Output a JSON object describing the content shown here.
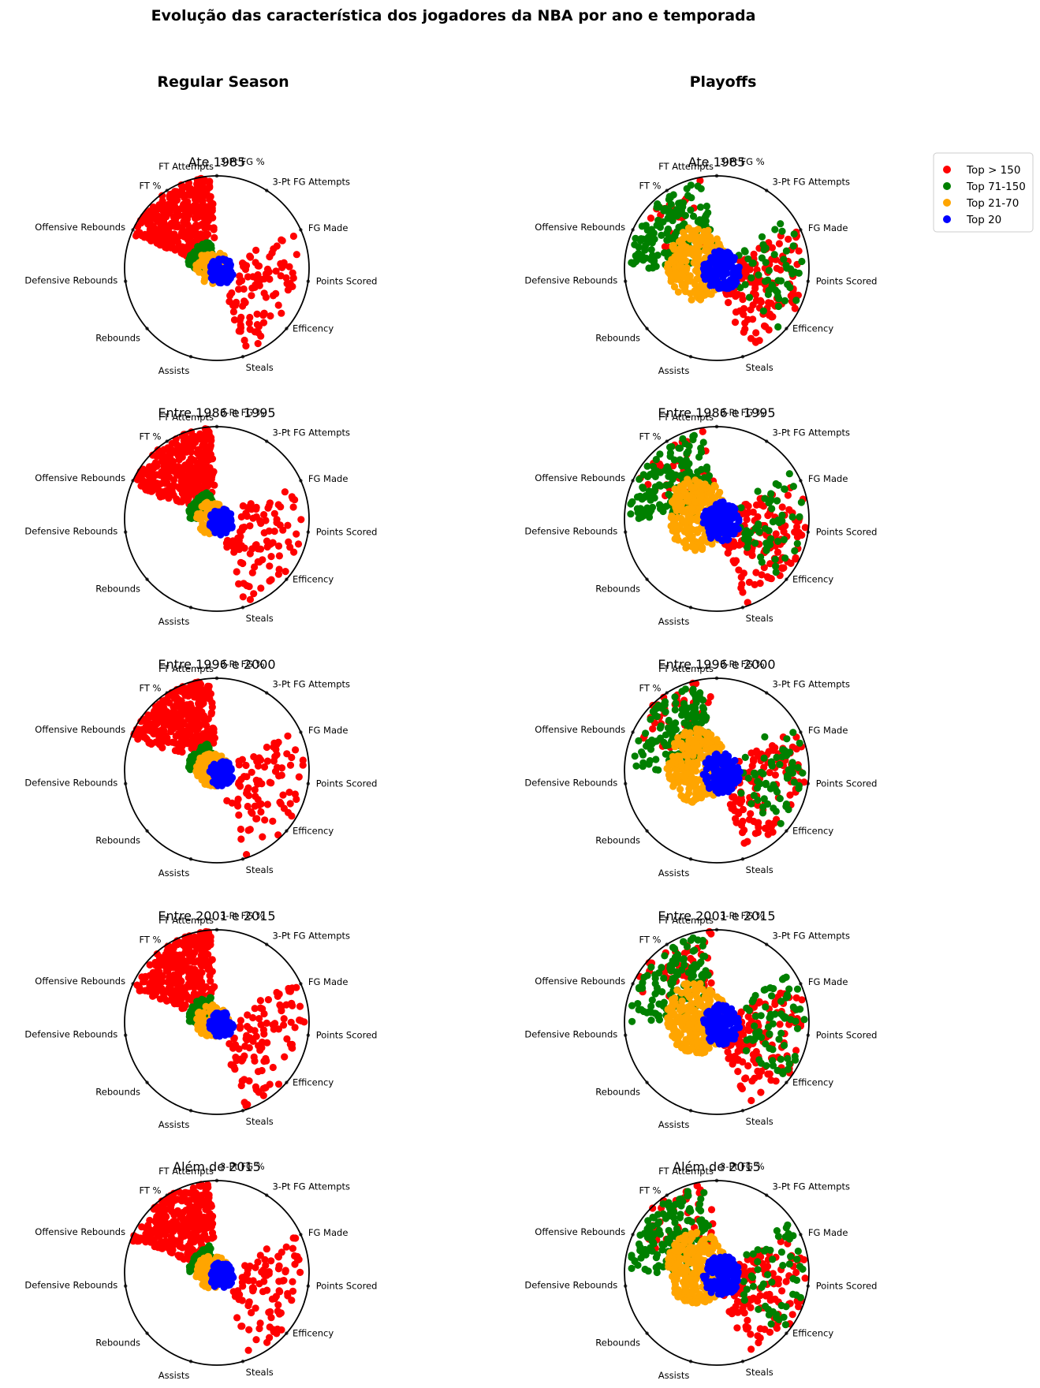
{
  "suptitle": "Evolução das característica dos jogadores da NBA por ano e temporada",
  "columns": [
    "Regular Season",
    "Playoffs"
  ],
  "axes": [
    "3-Pt FG %",
    "3-Pt FG Attempts",
    "FG Made",
    "Points Scored",
    "Efficency",
    "Steals",
    "Assists",
    "Rebounds",
    "Defensive Rebounds",
    "Offensive Rebounds",
    "FT %",
    "FT Attempts"
  ],
  "legend": [
    {
      "label": "Top > 150",
      "color": "#ff0000"
    },
    {
      "label": "Top 71-150",
      "color": "#008000"
    },
    {
      "label": "Top 21-70",
      "color": "#ffa500"
    },
    {
      "label": "Top 20",
      "color": "#0000ff"
    }
  ],
  "chart_data": {
    "type": "scatter",
    "coordinate_system": "polar",
    "rlim": [
      0,
      1
    ],
    "grid": false,
    "legend_position": "right",
    "subplots": [
      {
        "column": "Regular Season",
        "title": "Ate 1985",
        "seed": 11
      },
      {
        "column": "Playoffs",
        "title": "Ate 1985",
        "seed": 12
      },
      {
        "column": "Regular Season",
        "title": "Entre 1986 e 1995",
        "seed": 21
      },
      {
        "column": "Playoffs",
        "title": "Entre 1986 e 1995",
        "seed": 22
      },
      {
        "column": "Regular Season",
        "title": "Entre 1996 e 2000",
        "seed": 31
      },
      {
        "column": "Playoffs",
        "title": "Entre 1996 e 2000",
        "seed": 32
      },
      {
        "column": "Regular Season",
        "title": "Entre 2001 e 2015",
        "seed": 41
      },
      {
        "column": "Playoffs",
        "title": "Entre 2001 e 2015",
        "seed": 42
      },
      {
        "column": "Regular Season",
        "title": "Além de 2015",
        "seed": 51
      },
      {
        "column": "Playoffs",
        "title": "Além de 2015",
        "seed": 52
      }
    ],
    "series": [
      {
        "name": "Top > 150",
        "color": "#ff0000"
      },
      {
        "name": "Top 71-150",
        "color": "#008000"
      },
      {
        "name": "Top 21-70",
        "color": "#ffa500"
      },
      {
        "name": "Top 20",
        "color": "#0000ff"
      }
    ]
  }
}
